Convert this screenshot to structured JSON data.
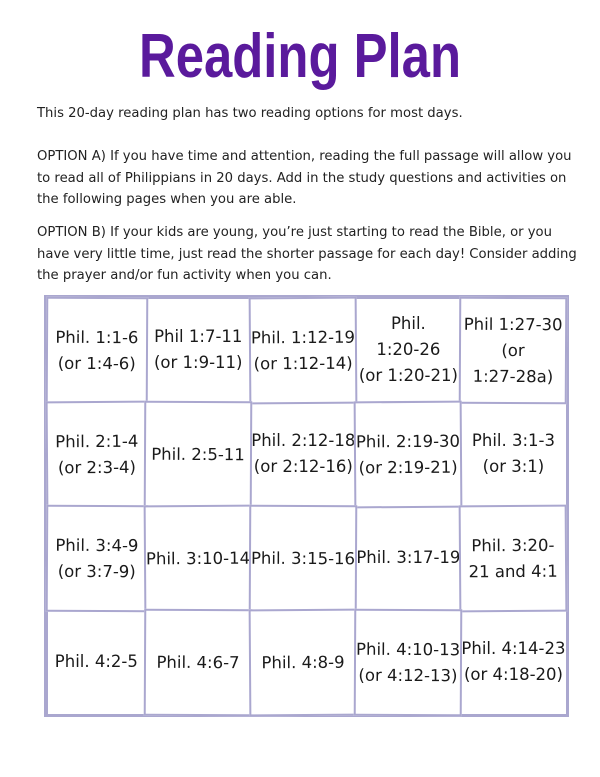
{
  "title": "Reading Plan",
  "intro": "This 20-day reading plan has two reading options for most days.",
  "option_a": "OPTION A) If you have time and attention, reading the full passage will allow you to read all of Philippians in 20 days. Add in the study questions and activities on the following pages when you are able.",
  "option_b": "OPTION B)  If your kids are young, you’re just starting to read the Bible, or you have very little time, just read the shorter passage for each day! Consider adding the prayer and/or fun activity when you can.",
  "border_color": "#aaa7cf",
  "title_color": "#5a1a9c",
  "days": [
    {
      "lines": [
        "Phil. 1:1-6",
        "(or 1:4-6)"
      ]
    },
    {
      "lines": [
        "Phil 1:7-11",
        "(or 1:9-11)"
      ]
    },
    {
      "lines": [
        "Phil. 1:12-19",
        "(or 1:12-14)"
      ]
    },
    {
      "lines": [
        "Phil.",
        "1:20-26",
        "(or 1:20-21)"
      ]
    },
    {
      "lines": [
        "Phil 1:27-30",
        "(or",
        "1:27-28a)"
      ]
    },
    {
      "lines": [
        "Phil. 2:1-4",
        "(or 2:3-4)"
      ]
    },
    {
      "lines": [
        "Phil. 2:5-11"
      ]
    },
    {
      "lines": [
        "Phil. 2:12-18",
        "(or 2:12-16)"
      ]
    },
    {
      "lines": [
        "Phil. 2:19-30",
        "(or 2:19-21)"
      ]
    },
    {
      "lines": [
        "Phil. 3:1-3",
        "(or 3:1)"
      ]
    },
    {
      "lines": [
        "Phil. 3:4-9",
        "(or 3:7-9)"
      ]
    },
    {
      "lines": [
        "Phil. 3:10-14"
      ]
    },
    {
      "lines": [
        "Phil. 3:15-16"
      ]
    },
    {
      "lines": [
        "Phil. 3:17-19"
      ]
    },
    {
      "lines": [
        "Phil. 3:20-",
        "21 and 4:1"
      ]
    },
    {
      "lines": [
        "Phil.  4:2-5"
      ]
    },
    {
      "lines": [
        "Phil. 4:6-7"
      ]
    },
    {
      "lines": [
        "Phil. 4:8-9"
      ]
    },
    {
      "lines": [
        "Phil. 4:10-13",
        "(or 4:12-13)"
      ]
    },
    {
      "lines": [
        "Phil. 4:14-23",
        "(or 4:18-20)"
      ]
    }
  ]
}
